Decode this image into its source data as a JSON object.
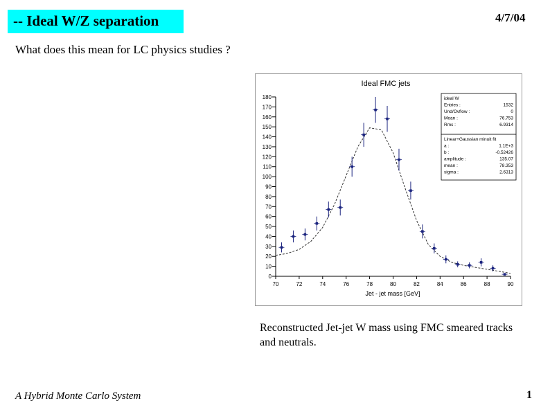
{
  "slide": {
    "title": "-- Ideal W/Z separation",
    "date": "4/7/04",
    "subtitle": "What does this mean for LC physics studies ?",
    "caption": "Reconstructed Jet-jet W mass using FMC smeared tracks and neutrals.",
    "footer": "A Hybrid Monte Carlo System",
    "page_number": "1"
  },
  "chart_data": {
    "type": "scatter",
    "title": "Ideal FMC jets",
    "xlabel": "Jet - jet mass [GeV]",
    "ylabel": "",
    "xlim": [
      70,
      90
    ],
    "ylim": [
      0,
      180
    ],
    "x_ticks": [
      "70",
      "72",
      "74",
      "76",
      "78",
      "80",
      "82",
      "84",
      "86",
      "88",
      "90"
    ],
    "y_ticks": [
      "0",
      "10",
      "20",
      "30",
      "40",
      "50",
      "60",
      "70",
      "80",
      "90",
      "100",
      "110",
      "120",
      "130",
      "140",
      "150",
      "160",
      "170",
      "180"
    ],
    "series": [
      {
        "name": "Ideal FMC",
        "x": [
          70.5,
          71.5,
          72.5,
          73.5,
          74.5,
          75.5,
          76.5,
          77.5,
          78.5,
          79.5,
          80.5,
          81.5,
          82.5,
          83.5,
          84.5,
          85.5,
          86.5,
          87.5,
          88.5,
          89.5
        ],
        "y": [
          29,
          40,
          42,
          53,
          67,
          69,
          110,
          142,
          167,
          158,
          117,
          86,
          45,
          28,
          17,
          12,
          11,
          14,
          8,
          2
        ],
        "err": [
          5,
          6,
          6,
          7,
          8,
          8,
          10,
          12,
          13,
          13,
          11,
          9,
          7,
          5,
          4,
          3,
          3,
          4,
          3,
          1
        ]
      },
      {
        "name": "Linear+Gaussian fit",
        "type": "curve",
        "x": [
          70,
          71,
          72,
          73,
          74,
          75,
          76,
          77,
          78,
          79,
          80,
          81,
          82,
          83,
          84,
          85,
          86,
          87,
          88,
          89,
          90
        ],
        "y": [
          21,
          23,
          27,
          35,
          49,
          72,
          101,
          130,
          149,
          147,
          124,
          89,
          56,
          32,
          20,
          14,
          11,
          9,
          7,
          5,
          3
        ]
      }
    ],
    "stats_box_1": {
      "lines": [
        {
          "label": "ideal W",
          "value": ""
        },
        {
          "label": "Entries :",
          "value": "1532"
        },
        {
          "label": "Und/Ovflow :",
          "value": "0"
        },
        {
          "label": "Mean :",
          "value": "76.753"
        },
        {
          "label": "Rms :",
          "value": "6.9314"
        }
      ]
    },
    "stats_box_2": {
      "lines": [
        {
          "label": "Linear+Gaussian minuit fit",
          "value": ""
        },
        {
          "label": "a :",
          "value": "1.1E+3"
        },
        {
          "label": "b :",
          "value": "-0.52426"
        },
        {
          "label": "amplitude :",
          "value": "135.07"
        },
        {
          "label": "mean :",
          "value": "78.353"
        },
        {
          "label": "sigma :",
          "value": "2.6313"
        }
      ]
    }
  }
}
